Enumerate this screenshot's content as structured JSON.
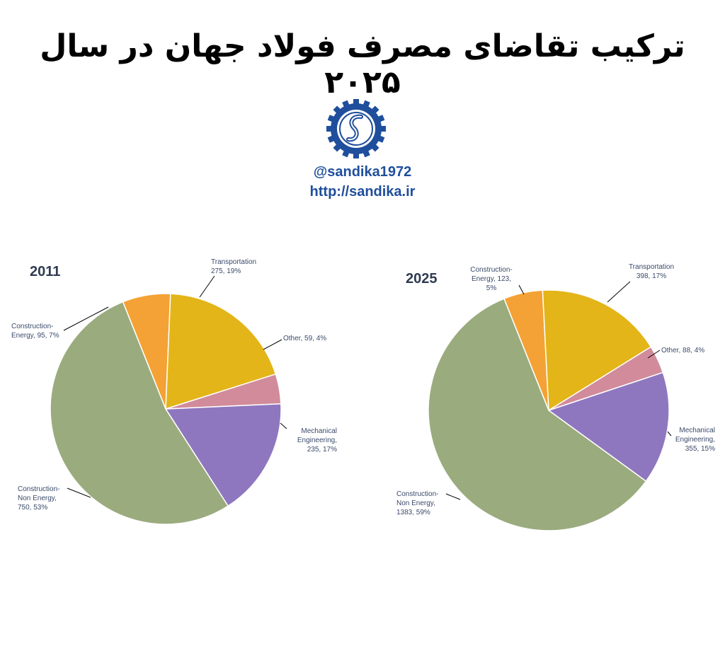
{
  "header": {
    "title": "ترکیب تقاضای مصرف فولاد جهان در سال ۲۰۲۵",
    "handle": "@sandika1972",
    "url": "http://sandika.ir"
  },
  "colors": {
    "construction_non_energy": "#9aab7e",
    "construction_energy": "#f4a235",
    "transportation": "#e3b518",
    "other": "#d18b9b",
    "mechanical_engineering": "#8f77bf",
    "logo_blue": "#1f4e9c"
  },
  "chart_data": [
    {
      "type": "pie",
      "title": "2011",
      "slices": [
        {
          "key": "construction_energy",
          "label_lines": [
            "Construction-",
            "Energy, 95, 7%"
          ],
          "value": 95,
          "percent": 7
        },
        {
          "key": "transportation",
          "label_lines": [
            "Transportation",
            "275, 19%"
          ],
          "value": 275,
          "percent": 19
        },
        {
          "key": "other",
          "label_lines": [
            "Other, 59, 4%"
          ],
          "value": 59,
          "percent": 4
        },
        {
          "key": "mechanical_engineering",
          "label_lines": [
            "Mechanical",
            "Engineering,",
            "235, 17%"
          ],
          "value": 235,
          "percent": 17
        },
        {
          "key": "construction_non_energy",
          "label_lines": [
            "Construction-",
            "Non Energy,",
            "750, 53%"
          ],
          "value": 750,
          "percent": 53
        }
      ]
    },
    {
      "type": "pie",
      "title": "2025",
      "slices": [
        {
          "key": "construction_energy",
          "label_lines": [
            "Construction-",
            "Energy, 123,",
            "5%"
          ],
          "value": 123,
          "percent": 5
        },
        {
          "key": "transportation",
          "label_lines": [
            "Transportation",
            "398, 17%"
          ],
          "value": 398,
          "percent": 17
        },
        {
          "key": "other",
          "label_lines": [
            "Other, 88, 4%"
          ],
          "value": 88,
          "percent": 4
        },
        {
          "key": "mechanical_engineering",
          "label_lines": [
            "Mechanical",
            "Engineering,",
            "355, 15%"
          ],
          "value": 355,
          "percent": 15
        },
        {
          "key": "construction_non_energy",
          "label_lines": [
            "Construction-",
            "Non Energy,",
            "1383, 59%"
          ],
          "value": 1383,
          "percent": 59
        }
      ]
    }
  ]
}
